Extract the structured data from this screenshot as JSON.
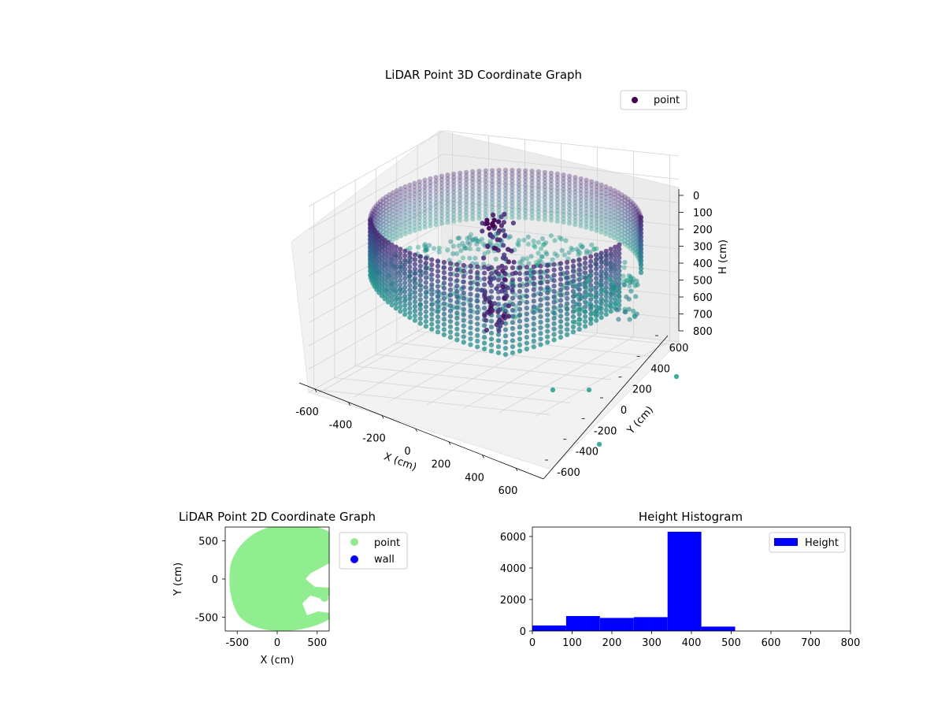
{
  "chart_data": [
    {
      "type": "scatter",
      "title": "LiDAR Point 3D Coordinate Graph",
      "xlabel": "X (cm)",
      "ylabel": "Y (cm)",
      "zlabel": "H (cm)",
      "xlim": [
        -650,
        650
      ],
      "ylim": [
        -650,
        650
      ],
      "zlim": [
        0,
        800
      ],
      "z_inverted": true,
      "x_ticks": [
        "-600",
        "-400",
        "-200",
        "0",
        "200",
        "400",
        "600"
      ],
      "y_ticks": [
        "-600",
        "-400",
        "-200",
        "0",
        "200",
        "400",
        "600"
      ],
      "z_ticks": [
        "0",
        "100",
        "200",
        "300",
        "400",
        "500",
        "600",
        "700",
        "800"
      ],
      "legend": {
        "entries": [
          "point"
        ],
        "position": "top-right"
      },
      "colormap": "viridis",
      "grid": true,
      "series": [
        {
          "name": "point",
          "description_points": {
            "ring_radius": 560,
            "ring_center": [
              0,
              0
            ],
            "height_range": [
              0,
              420
            ]
          }
        }
      ],
      "outliers": [
        [
          200,
          -640,
          620
        ],
        [
          320,
          -620,
          620
        ],
        [
          620,
          380,
          620
        ],
        [
          560,
          -420,
          620
        ]
      ]
    },
    {
      "type": "scatter",
      "title": "LiDAR Point 2D Coordinate Graph",
      "xlabel": "X (cm)",
      "ylabel": "Y (cm)",
      "xlim": [
        -650,
        650
      ],
      "ylim": [
        -680,
        680
      ],
      "x_ticks": [
        "-500",
        "0",
        "500"
      ],
      "y_ticks": [
        "-500",
        "0",
        "500"
      ],
      "legend": {
        "entries": [
          "point",
          "wall"
        ],
        "position": "outside-right"
      },
      "colors": {
        "point": "#90ee90",
        "wall": "#0000ff"
      },
      "series": [
        {
          "name": "point"
        },
        {
          "name": "wall"
        }
      ]
    },
    {
      "type": "bar",
      "title": "Height Histogram",
      "xlim": [
        0,
        800
      ],
      "ylim": [
        0,
        6600
      ],
      "x_ticks": [
        "0",
        "100",
        "200",
        "300",
        "400",
        "500",
        "600",
        "700",
        "800"
      ],
      "y_ticks": [
        "0",
        "2000",
        "4000",
        "6000"
      ],
      "legend": {
        "entries": [
          "Height"
        ],
        "position": "top-right"
      },
      "color": "#0000ff",
      "bins": [
        {
          "start": 0,
          "end": 85,
          "count": 350
        },
        {
          "start": 85,
          "end": 170,
          "count": 950
        },
        {
          "start": 170,
          "end": 255,
          "count": 830
        },
        {
          "start": 255,
          "end": 340,
          "count": 880
        },
        {
          "start": 340,
          "end": 425,
          "count": 6300
        },
        {
          "start": 425,
          "end": 510,
          "count": 280
        }
      ]
    }
  ]
}
